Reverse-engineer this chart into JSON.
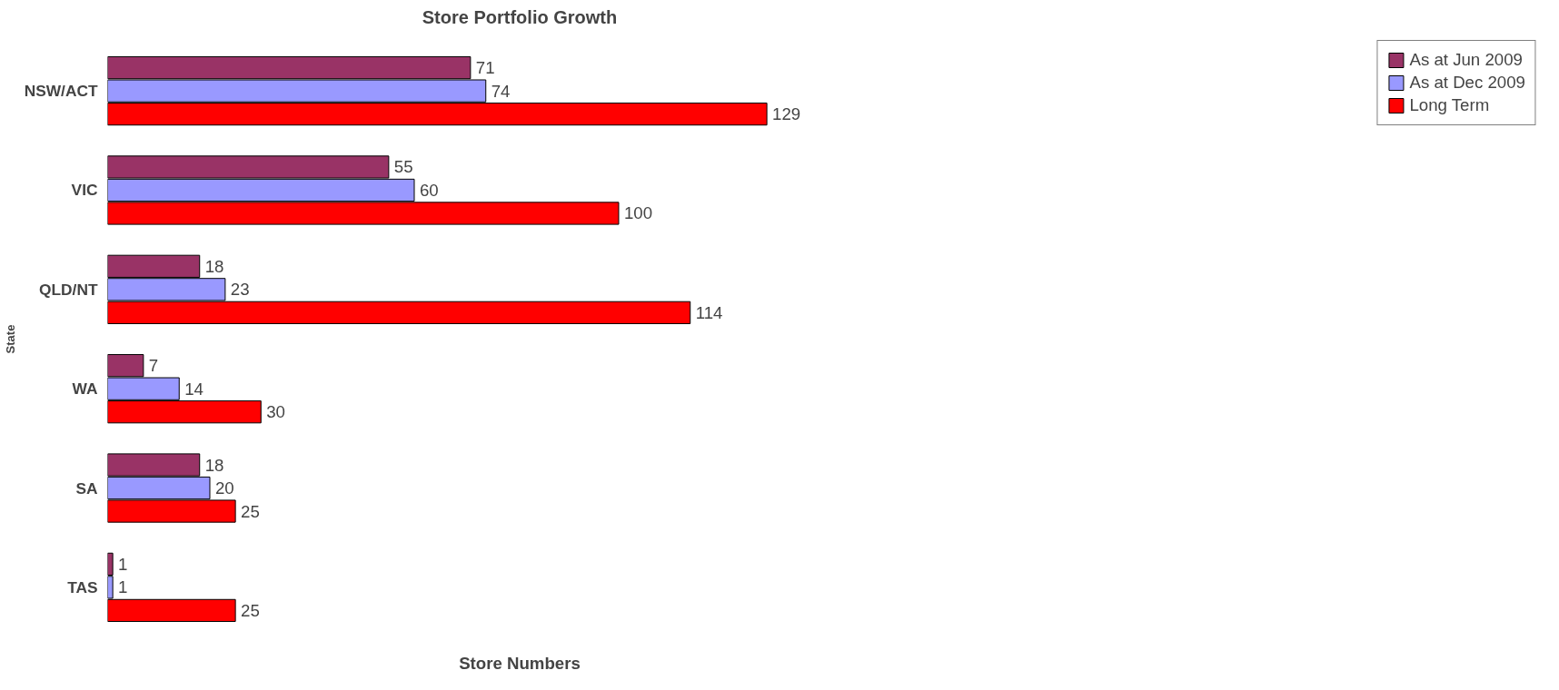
{
  "chart_data": {
    "type": "bar",
    "orientation": "horizontal",
    "title": "Store Portfolio Growth",
    "xlabel": "Store Numbers",
    "ylabel": "State",
    "categories": [
      "NSW/ACT",
      "VIC",
      "QLD/NT",
      "WA",
      "SA",
      "TAS"
    ],
    "series": [
      {
        "name": "As at Jun 2009",
        "color": "#993366",
        "values": [
          71,
          55,
          18,
          7,
          18,
          1
        ]
      },
      {
        "name": "As at Dec 2009",
        "color": "#9999ff",
        "values": [
          74,
          60,
          23,
          14,
          20,
          1
        ]
      },
      {
        "name": "Long Term",
        "color": "#ff0000",
        "values": [
          129,
          100,
          114,
          30,
          25,
          25
        ]
      }
    ],
    "data_labels": true,
    "legend": "right",
    "grid": false,
    "tick_labels": "y"
  }
}
